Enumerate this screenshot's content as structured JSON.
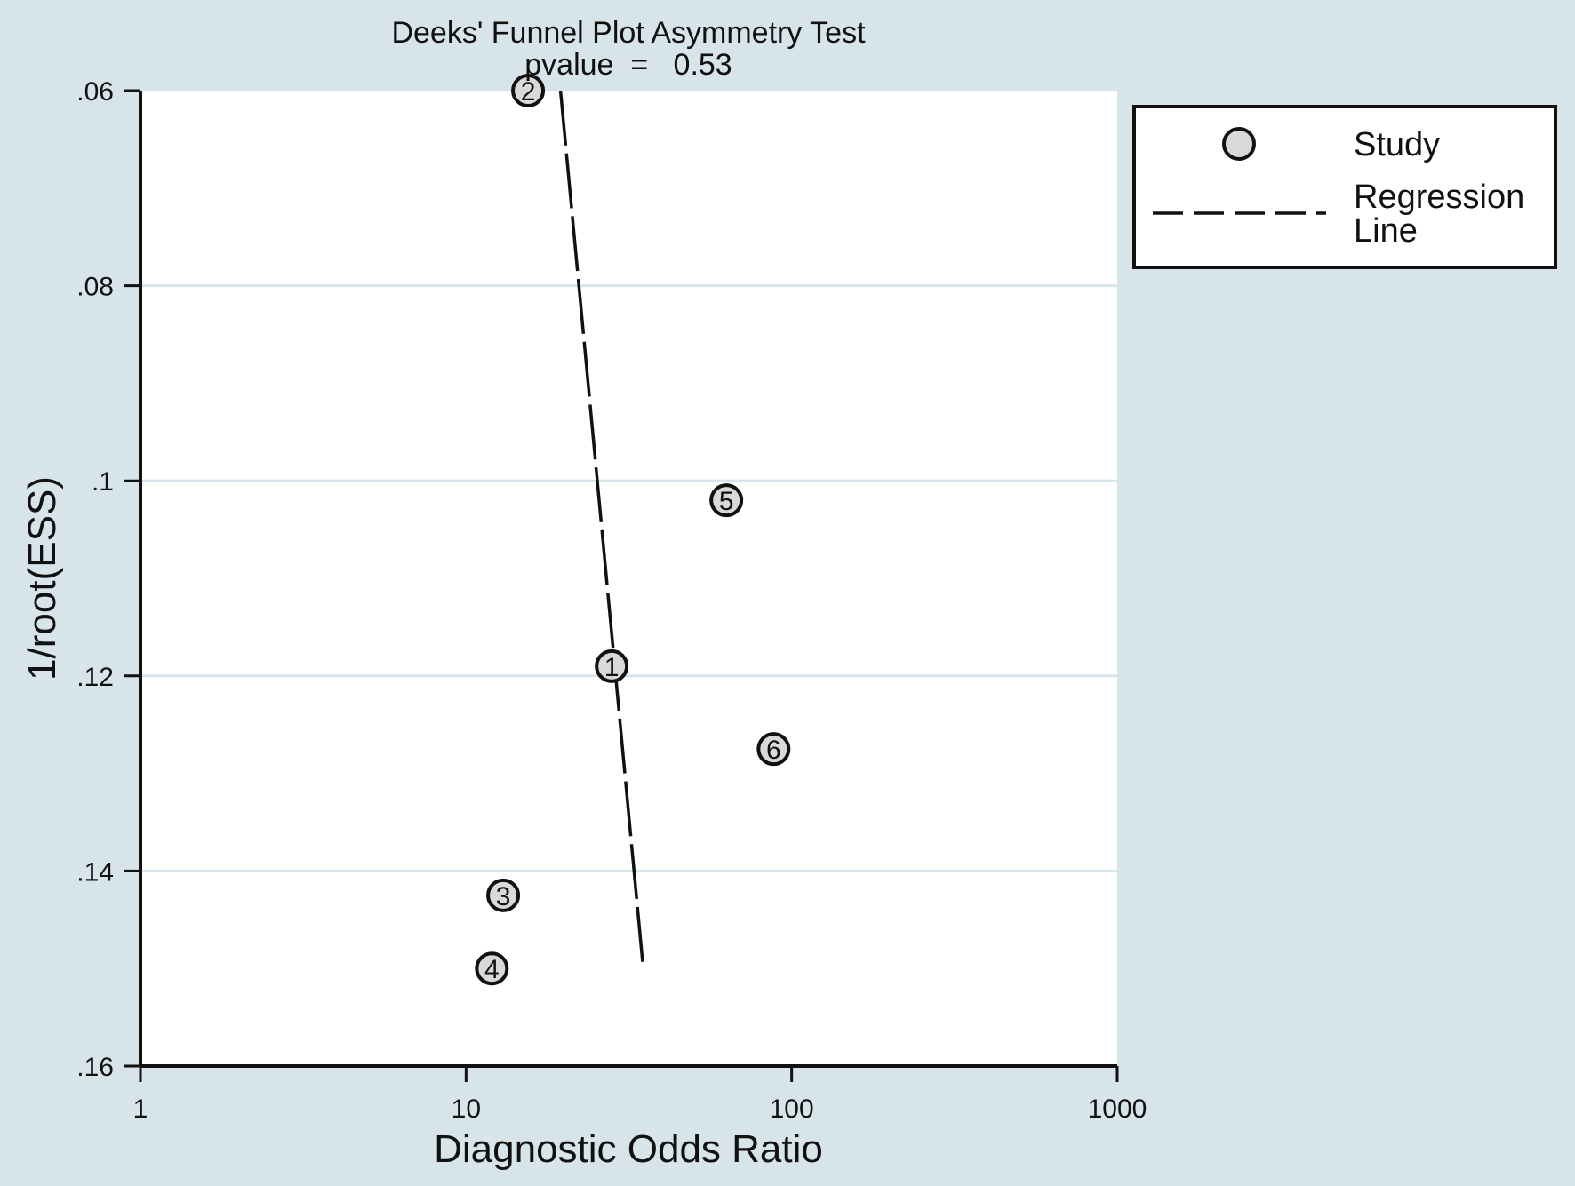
{
  "chart_data": {
    "type": "scatter",
    "title": "Deeks' Funnel Plot Asymmetry Test",
    "subtitle": "pvalue  =   0.53",
    "xlabel": "Diagnostic Odds Ratio",
    "ylabel": "1/root(ESS)",
    "x_scale": "log",
    "xlim": [
      1,
      1000
    ],
    "ylim": [
      0.06,
      0.16
    ],
    "y_reversed": true,
    "x_ticks": [
      1,
      10,
      100,
      1000
    ],
    "x_tick_labels": [
      "1",
      "10",
      "100",
      "1000"
    ],
    "y_ticks": [
      0.06,
      0.08,
      0.1,
      0.12,
      0.14,
      0.16
    ],
    "y_tick_labels": [
      ".06",
      ".08",
      ".1",
      ".12",
      ".14",
      ".16"
    ],
    "grid": "horizontal",
    "legend_position": "right",
    "points": [
      {
        "label": "1",
        "x": 28,
        "y": 0.119
      },
      {
        "label": "2",
        "x": 15.5,
        "y": 0.06
      },
      {
        "label": "3",
        "x": 13,
        "y": 0.1425
      },
      {
        "label": "4",
        "x": 12,
        "y": 0.15
      },
      {
        "label": "5",
        "x": 63,
        "y": 0.102
      },
      {
        "label": "6",
        "x": 88,
        "y": 0.1275
      }
    ],
    "regression_line": [
      {
        "x": 19.5,
        "y": 0.06
      },
      {
        "x": 35,
        "y": 0.15
      }
    ],
    "legend": [
      {
        "label": "Study",
        "kind": "marker"
      },
      {
        "label": "Regression\nLine",
        "kind": "dashed-line"
      }
    ],
    "colors": {
      "background": "#d7e4ea",
      "plot_area": "#ffffff",
      "gridline": "#d7e4ea",
      "marker_fill": "#d9d9d9",
      "ink": "#111111"
    }
  }
}
